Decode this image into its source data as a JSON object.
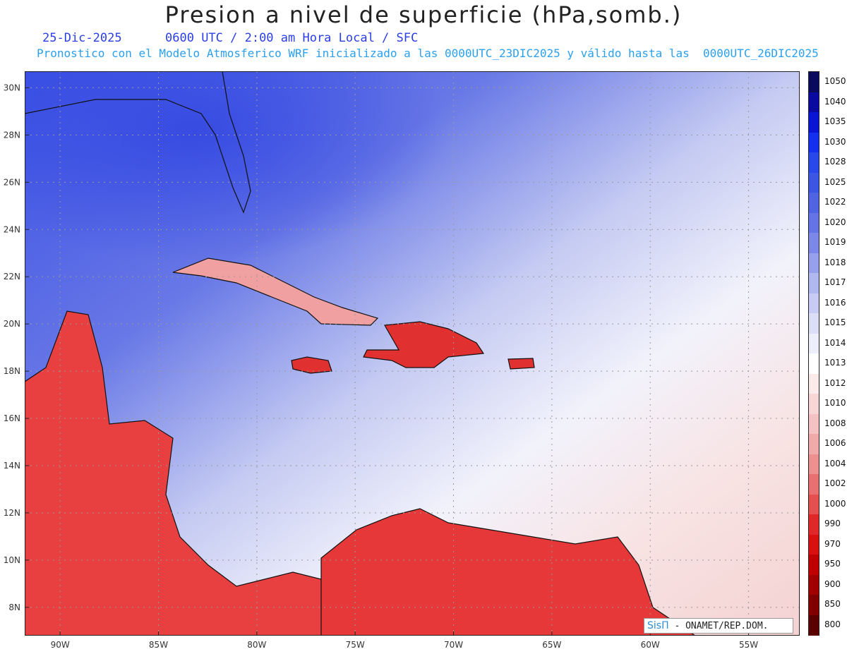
{
  "header": {
    "title": "Presion a nivel de superficie (hPa,somb.)",
    "date": "25-Dic-2025",
    "time": "0600 UTC / 2:00 am Hora Local / SFC",
    "forecast_line": "Pronostico con el Modelo Atmosferico WRF inicializado a las 0000UTC_23DIC2025 y válido hasta las  0000UTC_26DIC2025"
  },
  "map": {
    "lon_labels": [
      "90W",
      "85W",
      "80W",
      "75W",
      "70W",
      "65W",
      "60W",
      "55W"
    ],
    "lat_labels": [
      "30N",
      "28N",
      "26N",
      "24N",
      "22N",
      "20N",
      "18N",
      "16N",
      "14N",
      "12N",
      "10N",
      "8N"
    ],
    "lon_range": [
      -91.8,
      -52.4
    ],
    "lat_range": [
      6.8,
      30.7
    ]
  },
  "colorbar": {
    "levels": [
      "1050",
      "1040",
      "1035",
      "1030",
      "1028",
      "1025",
      "1022",
      "1020",
      "1019",
      "1018",
      "1017",
      "1016",
      "1015",
      "1014",
      "1013",
      "1012",
      "1010",
      "1008",
      "1006",
      "1004",
      "1002",
      "1000",
      "990",
      "970",
      "950",
      "900",
      "850",
      "800"
    ],
    "colors": [
      "#0a0a5e",
      "#0a0aa0",
      "#0a14d4",
      "#1430ee",
      "#2848ea",
      "#3a56e2",
      "#5064e2",
      "#6474e4",
      "#7c88e8",
      "#96a0ec",
      "#b0b8f0",
      "#c8ccf4",
      "#dcdef8",
      "#ededfb",
      "#ffffff",
      "#fbeaea",
      "#f8d6d6",
      "#f4c2c2",
      "#f0aaaa",
      "#ec9090",
      "#e87070",
      "#e45050",
      "#e02828",
      "#d81010",
      "#c00000",
      "#a00000",
      "#800000",
      "#5a0000"
    ]
  },
  "credit": {
    "logo": "SisΠ",
    "text": "- ONAMET/REP.DOM."
  }
}
